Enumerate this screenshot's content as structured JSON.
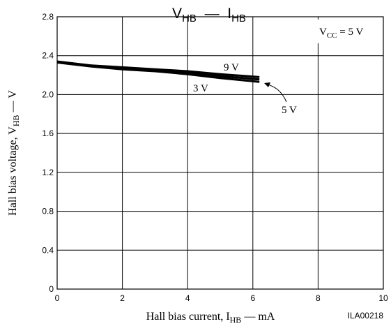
{
  "chart_data": {
    "type": "line",
    "title": {
      "main": "V",
      "sub": "HB",
      "dash": "—",
      "main2": "I",
      "sub2": "HB"
    },
    "xlabel": {
      "prefix": "Hall bias current, I",
      "sub": "HB",
      "suffix": " — mA"
    },
    "ylabel": {
      "prefix": "Hall bias voltage, V",
      "sub": "HB",
      "suffix": " — V"
    },
    "xlim": [
      0,
      10
    ],
    "ylim": [
      0,
      2.8
    ],
    "x_ticks": [
      0,
      2,
      4,
      6,
      8,
      10
    ],
    "y_ticks": [
      0,
      0.4,
      0.8,
      1.2,
      1.6,
      2.0,
      2.4,
      2.8
    ],
    "x_tick_labels": [
      "0",
      "2",
      "4",
      "6",
      "8",
      "10"
    ],
    "y_tick_labels": [
      "0",
      "0.4",
      "0.8",
      "1.2",
      "1.6",
      "2.0",
      "2.4",
      "2.8"
    ],
    "grid": true,
    "series": [
      {
        "name": "9 V",
        "x": [
          0,
          1,
          2,
          3,
          4,
          5,
          6.2
        ],
        "y": [
          2.34,
          2.3,
          2.28,
          2.26,
          2.24,
          2.21,
          2.18
        ]
      },
      {
        "name": "5 V",
        "x": [
          0,
          1,
          2,
          3,
          4,
          5,
          6.2
        ],
        "y": [
          2.34,
          2.3,
          2.27,
          2.25,
          2.23,
          2.19,
          2.155
        ]
      },
      {
        "name": "3 V",
        "x": [
          0,
          1,
          2,
          3,
          4,
          5,
          6.2
        ],
        "y": [
          2.33,
          2.29,
          2.26,
          2.24,
          2.21,
          2.17,
          2.13
        ]
      }
    ],
    "annotations": {
      "condition": {
        "prefix": "V",
        "sub": "CC",
        "suffix": " = 5 V"
      },
      "label_9v": "9 V",
      "label_3v": "3 V",
      "label_5v": "5 V"
    },
    "figure_id": "ILA00218"
  }
}
